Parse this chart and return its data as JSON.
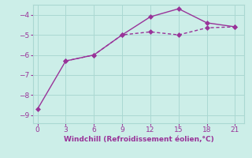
{
  "line1_x": [
    3,
    6,
    9,
    12,
    15,
    18,
    21
  ],
  "line1_y": [
    -6.3,
    -6.0,
    -5.0,
    -4.85,
    -5.0,
    -4.65,
    -4.6
  ],
  "line2_x": [
    0,
    3,
    6,
    9,
    12,
    15,
    18,
    21
  ],
  "line2_y": [
    -8.7,
    -6.3,
    -6.0,
    -5.0,
    -4.1,
    -3.7,
    -4.4,
    -4.6
  ],
  "line_color": "#993399",
  "background_color": "#cceee8",
  "grid_color": "#aad8d2",
  "xlabel": "Windchill (Refroidissement éolien,°C)",
  "xlabel_color": "#993399",
  "tick_color": "#993399",
  "xlim": [
    -0.5,
    22
  ],
  "ylim": [
    -9.4,
    -3.5
  ],
  "xticks": [
    0,
    3,
    6,
    9,
    12,
    15,
    18,
    21
  ],
  "yticks": [
    -9,
    -8,
    -7,
    -6,
    -5,
    -4
  ],
  "marker": "D",
  "marker_size": 3,
  "line_width": 1.0
}
